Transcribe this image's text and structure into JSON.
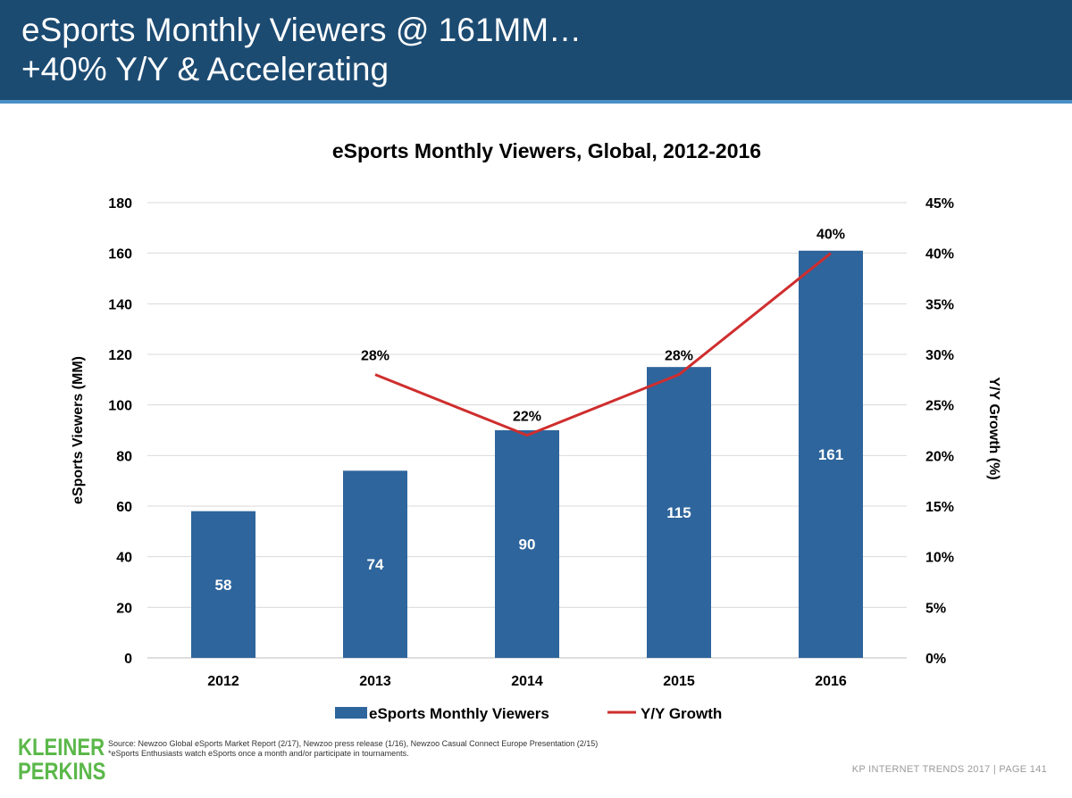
{
  "header": {
    "title_line1": "eSports Monthly Viewers @ 161MM…",
    "title_line2": "+40% Y/Y & Accelerating"
  },
  "colors": {
    "header_bg": "#1c4b72",
    "bar": "#2e659c",
    "line": "#cf2e2e",
    "logo": "#5bb84a"
  },
  "chart_data": {
    "type": "bar",
    "title": "eSports Monthly Viewers, Global, 2012-2016",
    "categories": [
      "2012",
      "2013",
      "2014",
      "2015",
      "2016"
    ],
    "series": [
      {
        "name": "eSports Monthly Viewers",
        "type": "bar",
        "axis": "left",
        "values": [
          58,
          74,
          90,
          115,
          161
        ],
        "labels": [
          "58",
          "74",
          "90",
          "115",
          "161"
        ]
      },
      {
        "name": "Y/Y Growth",
        "type": "line",
        "axis": "right",
        "values": [
          null,
          28,
          22,
          28,
          40
        ],
        "labels": [
          "",
          "28%",
          "22%",
          "28%",
          "40%"
        ]
      }
    ],
    "ylabel": "eSports Viewers (MM)",
    "y2label": "Y/Y Growth (%)",
    "ylim": [
      0,
      180
    ],
    "y2lim": [
      0,
      45
    ],
    "yticks": [
      "0",
      "20",
      "40",
      "60",
      "80",
      "100",
      "120",
      "140",
      "160",
      "180"
    ],
    "y2ticks": [
      "0%",
      "5%",
      "10%",
      "15%",
      "20%",
      "25%",
      "30%",
      "35%",
      "40%",
      "45%"
    ],
    "grid": true,
    "legend_position": "bottom"
  },
  "footer": {
    "logo_line1": "KLEINER",
    "logo_line2": "PERKINS",
    "source_line1": "Source: Newzoo Global eSports Market Report (2/17), Newzoo press release (1/16), Newzoo Casual Connect Europe Presentation (2/15)",
    "source_line2": "*eSports Enthusiasts watch eSports once a month and/or participate in tournaments.",
    "page_label": "KP INTERNET TRENDS 2017  |  PAGE 141"
  }
}
